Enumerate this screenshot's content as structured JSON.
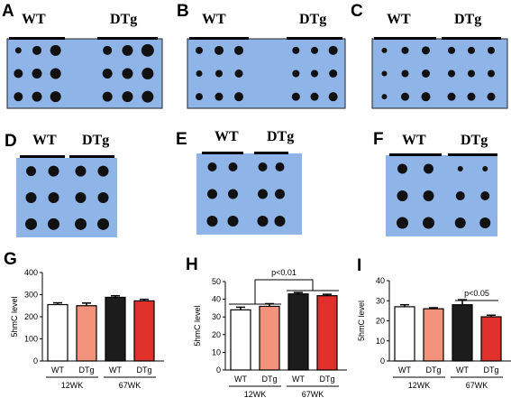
{
  "blots": [
    {
      "label": "A",
      "groups": [
        "WT",
        "DTg"
      ]
    },
    {
      "label": "B",
      "groups": [
        "WT",
        "DTg"
      ]
    },
    {
      "label": "C",
      "groups": [
        "WT",
        "DTg"
      ]
    },
    {
      "label": "D",
      "groups": [
        "WT",
        "DTg"
      ]
    },
    {
      "label": "E",
      "groups": [
        "WT",
        "DTg"
      ]
    },
    {
      "label": "F",
      "groups": [
        "WT",
        "DTg"
      ]
    }
  ],
  "chart_data": [
    {
      "type": "bar",
      "label": "G",
      "y_label": "5hmC level",
      "categories": [
        "WT",
        "DTg",
        "WT",
        "DTg"
      ],
      "groups": [
        "12WK",
        "67WK"
      ],
      "values": [
        255,
        250,
        288,
        272
      ],
      "errors": [
        8,
        12,
        7,
        7
      ],
      "colors": [
        "#ffffff",
        "#f4937c",
        "#1c1c1c",
        "#e0302b"
      ],
      "ylim": [
        0,
        400
      ],
      "yticks": [
        0,
        100,
        200,
        300,
        400
      ]
    },
    {
      "type": "bar",
      "label": "H",
      "y_label": "5hmC level",
      "categories": [
        "WT",
        "DTg",
        "WT",
        "DTg"
      ],
      "groups": [
        "12WK",
        "67WK"
      ],
      "values": [
        34,
        36,
        43,
        42
      ],
      "errors": [
        1.5,
        1.5,
        0.8,
        0.8
      ],
      "colors": [
        "#ffffff",
        "#f4937c",
        "#1c1c1c",
        "#e0302b"
      ],
      "ylim": [
        0,
        50
      ],
      "yticks": [
        0,
        10,
        20,
        30,
        40,
        50
      ],
      "annotation": "p<0.01"
    },
    {
      "type": "bar",
      "label": "I",
      "y_label": "5hmC level",
      "categories": [
        "WT",
        "DTg",
        "WT",
        "DTg"
      ],
      "groups": [
        "12WK",
        "67WK"
      ],
      "values": [
        27,
        26,
        28,
        22
      ],
      "errors": [
        1,
        0.5,
        2.5,
        0.8
      ],
      "colors": [
        "#ffffff",
        "#f4937c",
        "#1c1c1c",
        "#e0302b"
      ],
      "ylim": [
        0,
        40
      ],
      "yticks": [
        0,
        10,
        20,
        30,
        40
      ],
      "annotation": "p<0.05"
    }
  ]
}
